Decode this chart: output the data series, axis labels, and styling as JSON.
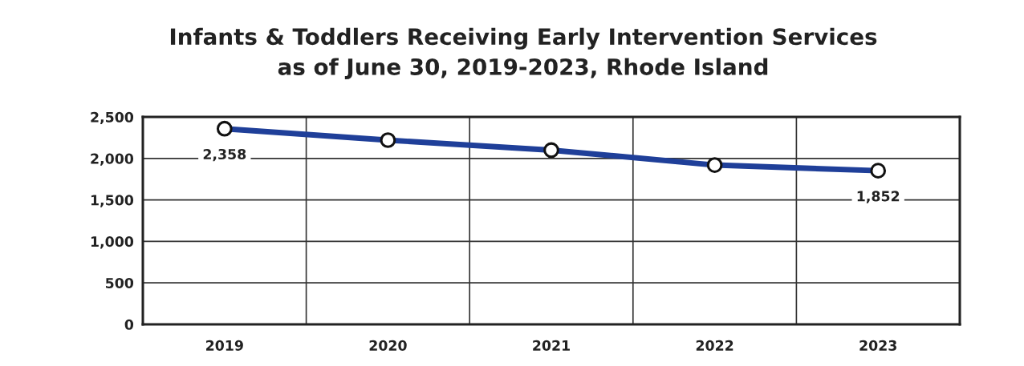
{
  "chart_data": {
    "type": "line",
    "title": "Infants & Toddlers Receiving Early Intervention Services\nas of June 30, 2019-2023, Rhode Island",
    "categories": [
      "2019",
      "2020",
      "2021",
      "2022",
      "2023"
    ],
    "series": [
      {
        "color": "#1f3f99",
        "values": [
          2358,
          2220,
          2100,
          1920,
          1852
        ],
        "value_labels": [
          "2,358",
          null,
          null,
          null,
          "1,852"
        ]
      }
    ],
    "ylim": [
      0,
      2500
    ],
    "yticks": [
      0,
      500,
      {
        "value": 1000,
        "label": "1,000"
      },
      {
        "value": 1500,
        "label": "1,500"
      },
      {
        "value": 2000,
        "label": "2,000"
      },
      {
        "value": 2500,
        "label": "2,500"
      }
    ],
    "grid": true,
    "marker": "circle",
    "line_style": "solid"
  }
}
